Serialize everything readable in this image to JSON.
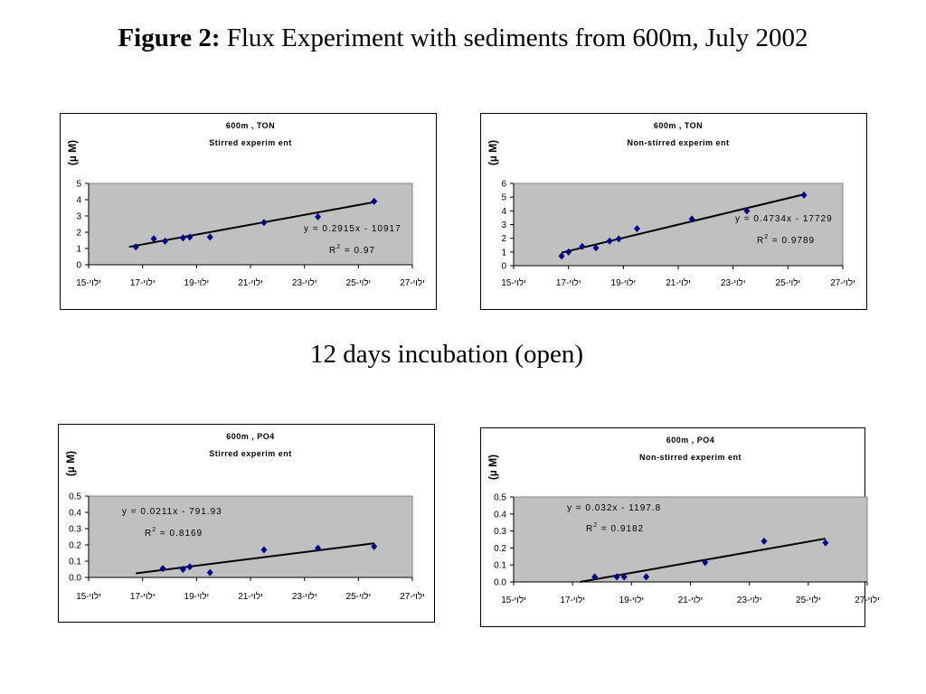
{
  "figure": {
    "label": "Figure 2:",
    "title": " Flux Experiment with sediments from 600m, July 2002"
  },
  "caption": "12 days incubation (open)",
  "chart_data": [
    {
      "type": "scatter",
      "title": "600m , TON",
      "subtitle": "Stirred experim ent",
      "ylabel": "(µ M)",
      "x_ticks": [
        "15-יולי",
        "17-יולי",
        "19-יולי",
        "21-יולי",
        "23-יולי",
        "25-יולי",
        "27-יולי"
      ],
      "xlim": [
        "2002-07-15",
        "2002-07-27"
      ],
      "ylim": [
        0,
        5
      ],
      "y_ticks": [
        "0",
        "1",
        "2",
        "3",
        "4",
        "5"
      ],
      "x": [
        "2002-07-16 18:00",
        "2002-07-17 10:00",
        "2002-07-17 20:00",
        "2002-07-18 12:00",
        "2002-07-18 18:00",
        "2002-07-19 12:00",
        "2002-07-21 12:00",
        "2002-07-23 12:00",
        "2002-07-25 14:00"
      ],
      "y": [
        1.1,
        1.6,
        1.45,
        1.65,
        1.7,
        1.7,
        2.6,
        2.95,
        3.9
      ],
      "trendline": {
        "x": [
          "2002-07-16 12:00",
          "2002-07-25 14:00"
        ],
        "y": [
          1.1,
          3.85
        ]
      },
      "equation": "y = 0.2915x - 10917",
      "r2_label": "R",
      "r2_sup": "2",
      "r2_value": " = 0.97",
      "marker_color": "#00008b",
      "plot_bg": "#c0c0c0",
      "legend_pos": "right"
    },
    {
      "type": "scatter",
      "title": "600m , TON",
      "subtitle": "Non-stirred experim ent",
      "ylabel": "(µ M)",
      "x_ticks": [
        "15-יולי",
        "17-יולי",
        "19-יולי",
        "21-יולי",
        "23-יולי",
        "25-יולי",
        "27-יולי"
      ],
      "xlim": [
        "2002-07-15",
        "2002-07-27"
      ],
      "ylim": [
        0,
        6
      ],
      "y_ticks": [
        "0",
        "1",
        "2",
        "3",
        "4",
        "5",
        "6"
      ],
      "x": [
        "2002-07-16 18:00",
        "2002-07-17 00:00",
        "2002-07-17 12:00",
        "2002-07-18 00:00",
        "2002-07-18 12:00",
        "2002-07-18 20:00",
        "2002-07-19 12:00",
        "2002-07-21 12:00",
        "2002-07-23 12:00",
        "2002-07-25 14:00"
      ],
      "y": [
        0.7,
        1.0,
        1.4,
        1.3,
        1.8,
        1.95,
        2.7,
        3.4,
        4.0,
        5.15
      ],
      "trendline": {
        "x": [
          "2002-07-16 18:00",
          "2002-07-25 14:00"
        ],
        "y": [
          0.95,
          5.2
        ]
      },
      "equation": "y = 0.4734x - 17729",
      "r2_label": "R",
      "r2_sup": "2",
      "r2_value": " = 0.9789",
      "marker_color": "#00008b",
      "plot_bg": "#c0c0c0",
      "legend_pos": "right"
    },
    {
      "type": "scatter",
      "title": "600m , PO4",
      "subtitle": "Stirred experim ent",
      "ylabel": "(µ M)",
      "x_ticks": [
        "15-יולי",
        "17-יולי",
        "19-יולי",
        "21-יולי",
        "23-יולי",
        "25-יולי",
        "27-יולי"
      ],
      "xlim": [
        "2002-07-15",
        "2002-07-27"
      ],
      "ylim": [
        0,
        0.5
      ],
      "y_ticks": [
        "0.0",
        "0.1",
        "0.2",
        "0.3",
        "0.4",
        "0.5"
      ],
      "x": [
        "2002-07-17 18:00",
        "2002-07-18 12:00",
        "2002-07-18 18:00",
        "2002-07-19 12:00",
        "2002-07-21 12:00",
        "2002-07-23 12:00",
        "2002-07-25 14:00"
      ],
      "y": [
        0.055,
        0.05,
        0.065,
        0.03,
        0.17,
        0.18,
        0.19
      ],
      "trendline": {
        "x": [
          "2002-07-16 18:00",
          "2002-07-25 14:00"
        ],
        "y": [
          0.025,
          0.21
        ]
      },
      "equation": "y = 0.0211x - 791.93",
      "r2_label": "R",
      "r2_sup": "2",
      "r2_value": " = 0.8169",
      "marker_color": "#00008b",
      "plot_bg": "#c0c0c0",
      "legend_pos": "left"
    },
    {
      "type": "scatter",
      "title": "600m , PO4",
      "subtitle": "Non-stirred experim ent",
      "ylabel": "(µ M)",
      "x_ticks": [
        "15-יולי",
        "17-יולי",
        "19-יולי",
        "21-יולי",
        "23-יולי",
        "25-יולי",
        "27-יולי"
      ],
      "xlim": [
        "2002-07-15",
        "2002-07-27"
      ],
      "ylim": [
        0,
        0.5
      ],
      "y_ticks": [
        "0.0",
        "0.1",
        "0.2",
        "0.3",
        "0.4",
        "0.5"
      ],
      "x": [
        "2002-07-17 18:00",
        "2002-07-18 12:00",
        "2002-07-18 18:00",
        "2002-07-19 12:00",
        "2002-07-21 12:00",
        "2002-07-23 12:00",
        "2002-07-25 14:00"
      ],
      "y": [
        0.03,
        0.03,
        0.03,
        0.03,
        0.115,
        0.24,
        0.23
      ],
      "trendline": {
        "x": [
          "2002-07-17 06:00",
          "2002-07-25 14:00"
        ],
        "y": [
          0.0,
          0.255
        ]
      },
      "equation": "y = 0.032x - 1197.8",
      "r2_label": "R",
      "r2_sup": "2",
      "r2_value": " = 0.9182",
      "marker_color": "#00008b",
      "plot_bg": "#c0c0c0",
      "legend_pos": "left"
    }
  ]
}
